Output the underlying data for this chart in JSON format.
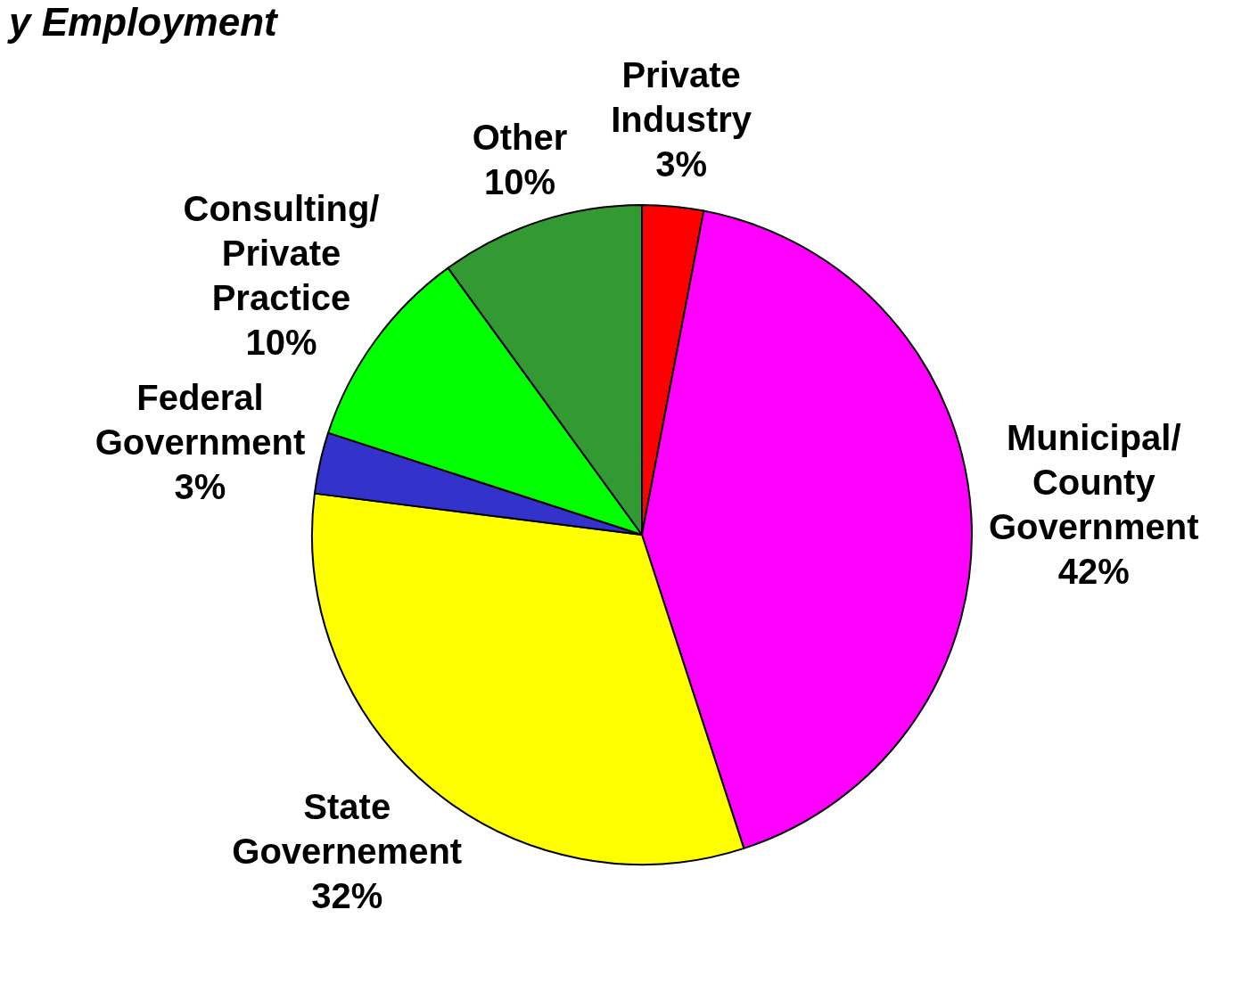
{
  "chart_data": {
    "type": "pie",
    "title": "y Employment",
    "categories": [
      "Private Industry",
      "Municipal/ County Government",
      "State Governement",
      "Federal Government",
      "Consulting/ Private Practice",
      "Other"
    ],
    "values": [
      3,
      42,
      32,
      3,
      10,
      10
    ],
    "colors": [
      "#ff0000",
      "#ff00ff",
      "#ffff00",
      "#3333cc",
      "#00ff00",
      "#339933"
    ],
    "value_labels": [
      "3%",
      "42%",
      "32%",
      "3%",
      "10%",
      "10%"
    ],
    "legend": false
  }
}
